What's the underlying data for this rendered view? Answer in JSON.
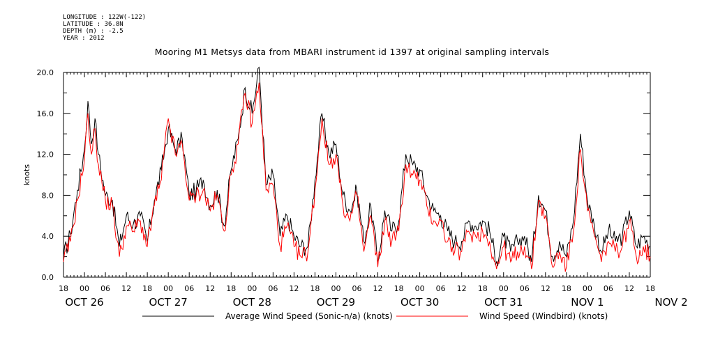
{
  "header": {
    "longitude": "LONGITUDE : 122W(-122)",
    "latitude": "LATITUDE : 36.8N",
    "depth": "DEPTH (m) : -2.5",
    "year": "YEAR : 2012"
  },
  "colors": {
    "sonic": "#000000",
    "windbird": "#ff0000"
  },
  "chart_data": {
    "type": "line",
    "title": "Mooring M1 Metsys data from MBARI instrument id 1397 at original sampling intervals",
    "ylabel": "knots",
    "xlabel": "",
    "ylim": [
      0,
      20
    ],
    "xlim_hours": [
      -6,
      162
    ],
    "x_units": "hours from 2012-10-26 00:00",
    "yticks": [
      0.0,
      4.0,
      8.0,
      12.0,
      16.0,
      20.0
    ],
    "ytick_labels": [
      "0.0",
      "4.0",
      "8.0",
      "12.0",
      "16.0",
      "20.0"
    ],
    "hour_ticks": [
      "18",
      "00",
      "06",
      "12",
      "18",
      "00",
      "06",
      "12",
      "18",
      "00",
      "06",
      "12",
      "18",
      "00",
      "06",
      "12",
      "18",
      "00",
      "06",
      "12",
      "18",
      "00",
      "06",
      "12",
      "18",
      "00",
      "06",
      "12",
      "18"
    ],
    "day_labels": [
      "OCT 26",
      "OCT 27",
      "OCT 28",
      "OCT 29",
      "OCT 30",
      "OCT 31",
      "NOV  1",
      "NOV  2"
    ],
    "grid": false,
    "legend_placement": "bottom",
    "series": [
      {
        "name": "Average Wind Speed (Sonic-n/a) (knots)",
        "x": [
          -6,
          -4,
          -2,
          0,
          1,
          2,
          3,
          4,
          6,
          8,
          10,
          12,
          14,
          16,
          18,
          20,
          22,
          24,
          26,
          28,
          30,
          32,
          34,
          36,
          38,
          40,
          42,
          44,
          46,
          48,
          50,
          52,
          54,
          56,
          58,
          60,
          62,
          64,
          66,
          68,
          70,
          72,
          74,
          76,
          78,
          80,
          82,
          84,
          86,
          88,
          90,
          92,
          94,
          96,
          98,
          100,
          102,
          104,
          106,
          108,
          110,
          112,
          114,
          116,
          118,
          120,
          122,
          124,
          126,
          128,
          130,
          132,
          134,
          136,
          138,
          140,
          142,
          144,
          146,
          148,
          150,
          152,
          154,
          156,
          158,
          160,
          162
        ],
        "values": [
          2.0,
          4.2,
          8.5,
          12.5,
          17.2,
          13.0,
          15.5,
          12.0,
          8.0,
          7.5,
          3.0,
          6.0,
          5.2,
          6.0,
          3.5,
          7.5,
          10.5,
          14.5,
          12.5,
          13.5,
          8.0,
          8.5,
          9.5,
          7.0,
          8.5,
          5.0,
          10.5,
          13.5,
          18.5,
          16.0,
          20.5,
          9.0,
          10.0,
          4.0,
          6.0,
          4.0,
          3.0,
          3.0,
          9.5,
          16.0,
          12.0,
          13.0,
          8.0,
          6.5,
          8.5,
          3.5,
          7.0,
          1.5,
          6.5,
          4.5,
          5.5,
          12.0,
          11.0,
          10.5,
          8.0,
          6.5,
          6.0,
          4.5,
          3.5,
          3.5,
          5.5,
          5.0,
          5.5,
          4.5,
          1.5,
          4.0,
          2.5,
          3.5,
          4.0,
          1.5,
          8.0,
          6.5,
          2.0,
          3.5,
          2.0,
          5.5,
          14.0,
          7.5,
          5.0,
          2.5,
          4.5,
          3.5,
          4.0,
          6.5,
          3.0,
          4.0,
          3.0
        ]
      },
      {
        "name": "Wind Speed (Windbird) (knots)",
        "x": [
          -6,
          -4,
          -2,
          0,
          1,
          2,
          3,
          4,
          6,
          8,
          10,
          12,
          14,
          16,
          18,
          20,
          22,
          24,
          26,
          28,
          30,
          32,
          34,
          36,
          38,
          40,
          42,
          44,
          46,
          48,
          50,
          52,
          54,
          56,
          58,
          60,
          62,
          64,
          66,
          68,
          70,
          72,
          74,
          76,
          78,
          80,
          82,
          84,
          86,
          88,
          90,
          92,
          94,
          96,
          98,
          100,
          102,
          104,
          106,
          108,
          110,
          112,
          114,
          116,
          118,
          120,
          122,
          124,
          126,
          128,
          130,
          132,
          134,
          136,
          138,
          140,
          142,
          144,
          146,
          148,
          150,
          152,
          154,
          156,
          158,
          160,
          162
        ],
        "values": [
          1.5,
          3.5,
          7.5,
          11.5,
          16.0,
          12.0,
          14.5,
          11.0,
          7.5,
          7.0,
          2.0,
          5.0,
          4.5,
          5.5,
          3.0,
          7.0,
          9.5,
          15.5,
          12.0,
          13.0,
          7.5,
          8.0,
          8.5,
          6.5,
          8.0,
          4.5,
          10.0,
          13.0,
          18.0,
          15.0,
          19.0,
          8.5,
          9.0,
          3.0,
          5.0,
          3.0,
          2.0,
          2.5,
          8.5,
          15.5,
          11.0,
          12.0,
          7.0,
          5.5,
          8.0,
          2.5,
          6.0,
          1.0,
          5.5,
          3.5,
          4.5,
          11.0,
          10.0,
          9.5,
          7.0,
          5.5,
          5.5,
          3.5,
          2.5,
          2.5,
          4.5,
          4.0,
          4.5,
          3.5,
          0.8,
          3.0,
          1.5,
          2.5,
          3.0,
          0.8,
          7.5,
          6.0,
          1.0,
          2.5,
          1.0,
          4.5,
          12.5,
          6.5,
          4.0,
          1.5,
          3.5,
          2.5,
          3.0,
          5.5,
          2.0,
          3.0,
          2.0
        ]
      }
    ]
  }
}
